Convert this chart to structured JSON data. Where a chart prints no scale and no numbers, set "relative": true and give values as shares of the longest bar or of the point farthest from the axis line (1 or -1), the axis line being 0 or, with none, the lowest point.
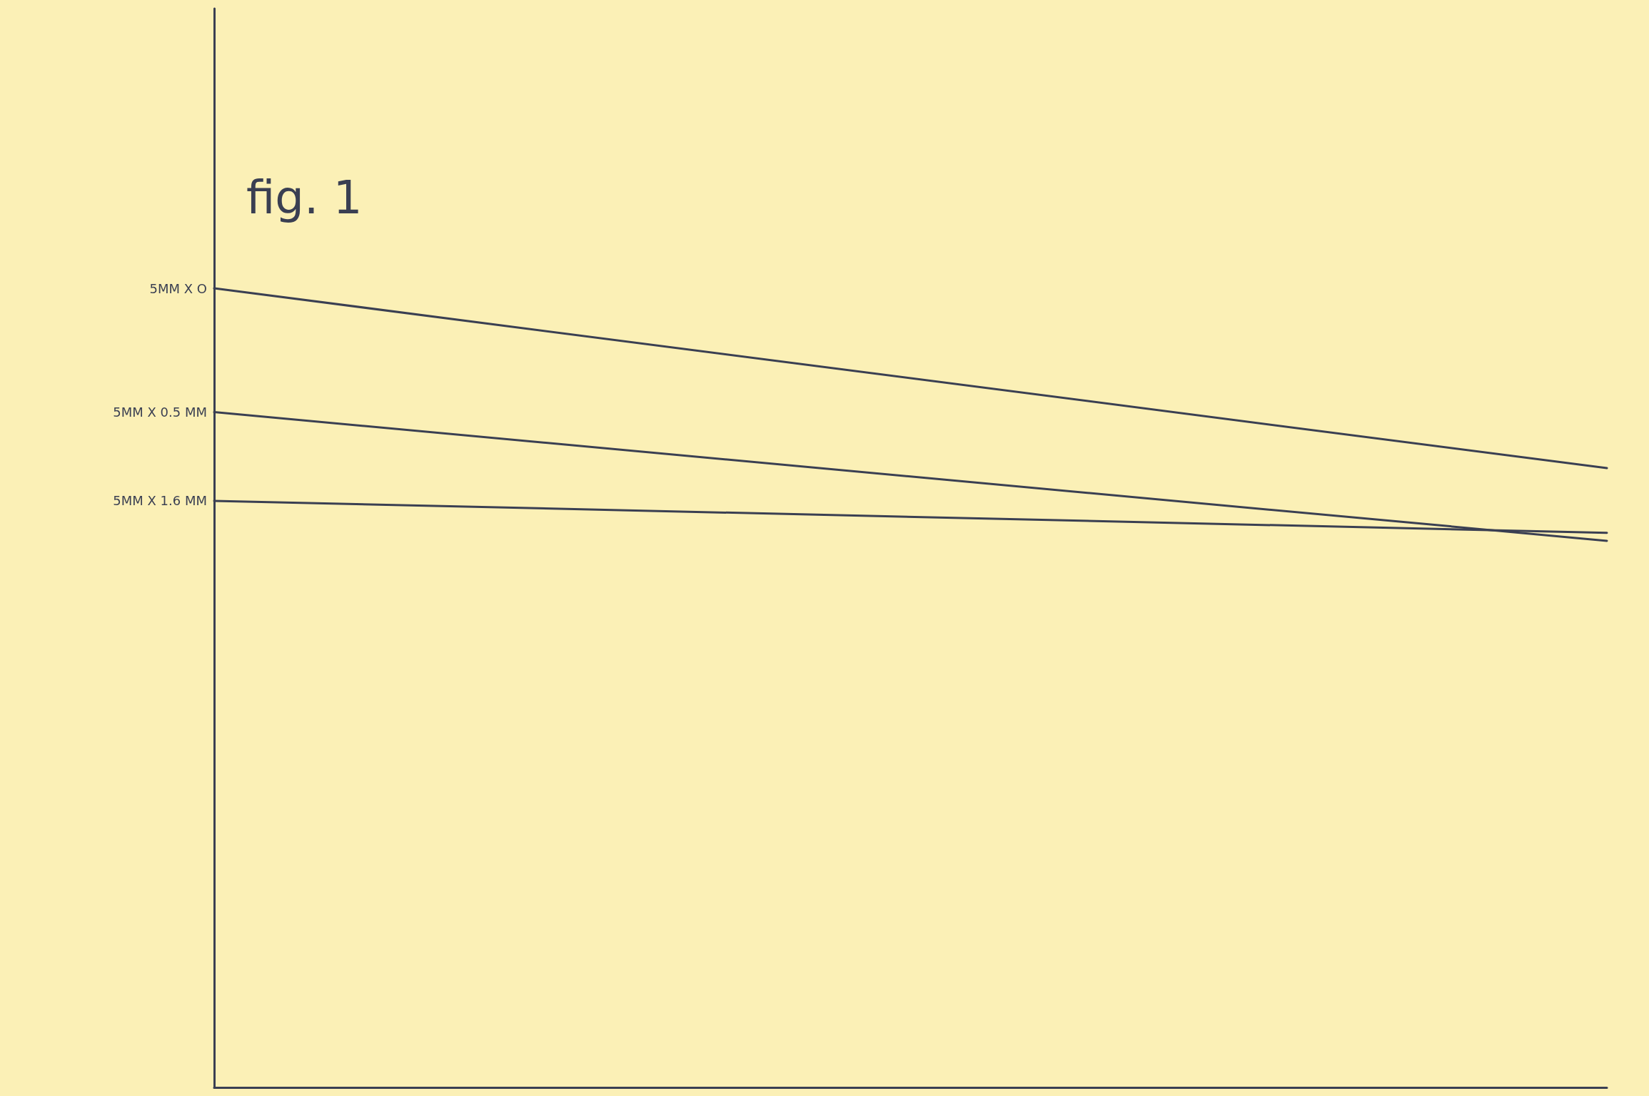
{
  "chart_data": {
    "type": "line",
    "title": "fig. 1",
    "relative": true,
    "marker": "none",
    "line_style": "solid",
    "categories": [
      null,
      null
    ],
    "series": [
      {
        "name": "5MM X O",
        "color": "#3a3f52",
        "values": [
          1,
          0.775
        ]
      },
      {
        "name": "5MM X 0.5 MM",
        "color": "#3a3f52",
        "values": [
          0.845,
          0.684
        ]
      },
      {
        "name": "5MM X 1.6 MM",
        "color": "#3a3f52",
        "values": [
          0.734,
          0.694
        ]
      }
    ]
  }
}
